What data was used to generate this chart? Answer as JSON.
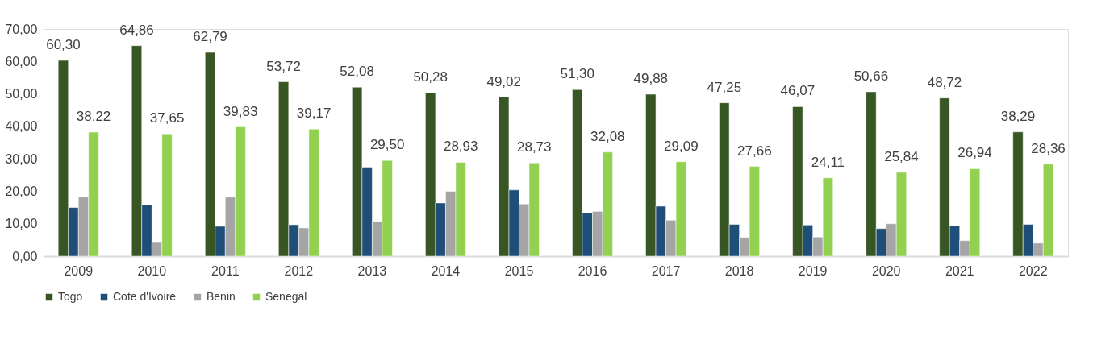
{
  "chart_data": {
    "type": "bar",
    "categories": [
      "2009",
      "2010",
      "2011",
      "2012",
      "2013",
      "2014",
      "2015",
      "2016",
      "2017",
      "2018",
      "2019",
      "2020",
      "2021",
      "2022"
    ],
    "series": [
      {
        "name": "Togo",
        "color": "#375623",
        "values": [
          60.3,
          64.86,
          62.79,
          53.72,
          52.08,
          50.28,
          49.02,
          51.3,
          49.88,
          47.25,
          46.07,
          50.66,
          48.72,
          38.29
        ],
        "value_labels": [
          "60,30",
          "64,86",
          "62,79",
          "53,72",
          "52,08",
          "50,28",
          "49,02",
          "51,30",
          "49,88",
          "47,25",
          "46,07",
          "50,66",
          "48,72",
          "38,29"
        ]
      },
      {
        "name": "Cote d'Ivoire",
        "color": "#1f4e79",
        "values": [
          15.0,
          15.8,
          9.2,
          9.7,
          27.4,
          16.4,
          20.4,
          13.3,
          15.4,
          9.8,
          9.6,
          8.5,
          9.3,
          9.8
        ]
      },
      {
        "name": "Benin",
        "color": "#a5a5a5",
        "values": [
          18.2,
          4.2,
          18.2,
          8.7,
          10.7,
          20.0,
          16.1,
          13.8,
          11.1,
          5.8,
          5.9,
          10.0,
          4.8,
          4.0
        ]
      },
      {
        "name": "Senegal",
        "color": "#92d050",
        "values": [
          38.22,
          37.65,
          39.83,
          39.17,
          29.5,
          28.93,
          28.73,
          32.08,
          29.09,
          27.66,
          24.11,
          25.84,
          26.94,
          28.36
        ],
        "value_labels": [
          "38,22",
          "37,65",
          "39,83",
          "39,17",
          "29,50",
          "28,93",
          "28,73",
          "32,08",
          "29,09",
          "27,66",
          "24,11",
          "25,84",
          "26,94",
          "28,36"
        ]
      }
    ],
    "ylim": [
      0,
      70
    ],
    "yticks": [
      {
        "value": 0,
        "label": "0,00"
      },
      {
        "value": 10,
        "label": "10,00"
      },
      {
        "value": 20,
        "label": "20,00"
      },
      {
        "value": 30,
        "label": "30,00"
      },
      {
        "value": 40,
        "label": "40,00"
      },
      {
        "value": 50,
        "label": "50,00"
      },
      {
        "value": 60,
        "label": "60,00"
      },
      {
        "value": 70,
        "label": "70,00"
      }
    ],
    "grid": false,
    "legend": "bottom"
  }
}
